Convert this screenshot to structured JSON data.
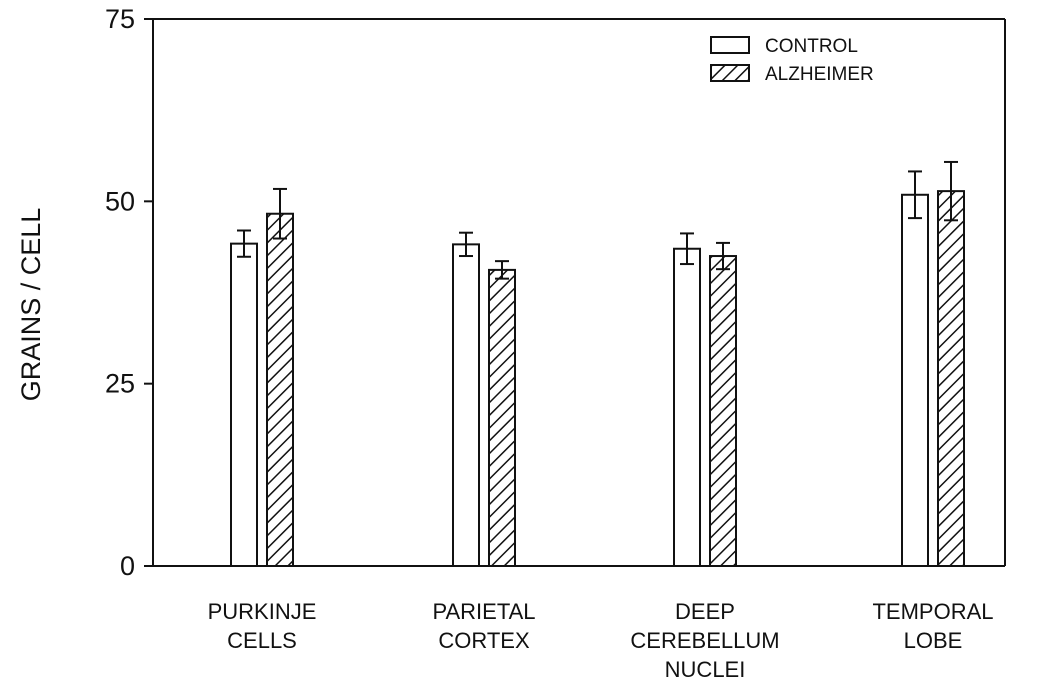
{
  "chart_data": {
    "type": "bar",
    "title": "",
    "xlabel": "",
    "ylabel": "GRAINS / CELL",
    "ylim": [
      0,
      75
    ],
    "yticks": [
      0,
      25,
      50,
      75
    ],
    "grid": false,
    "legend_position": "top-right",
    "categories": [
      [
        "PURKINJE",
        "CELLS"
      ],
      [
        "PARIETAL",
        "CORTEX"
      ],
      [
        "DEEP",
        "CEREBELLUM",
        "NUCLEI"
      ],
      [
        "TEMPORAL",
        "LOBE"
      ]
    ],
    "series": [
      {
        "name": "CONTROL",
        "pattern": "open",
        "values": [
          44.2,
          44.1,
          43.5,
          50.9
        ],
        "errors": [
          1.8,
          1.6,
          2.1,
          3.2
        ]
      },
      {
        "name": "ALZHEIMER",
        "pattern": "hatched",
        "values": [
          48.3,
          40.6,
          42.5,
          51.4
        ],
        "errors": [
          3.4,
          1.2,
          1.8,
          4.0
        ]
      }
    ]
  }
}
